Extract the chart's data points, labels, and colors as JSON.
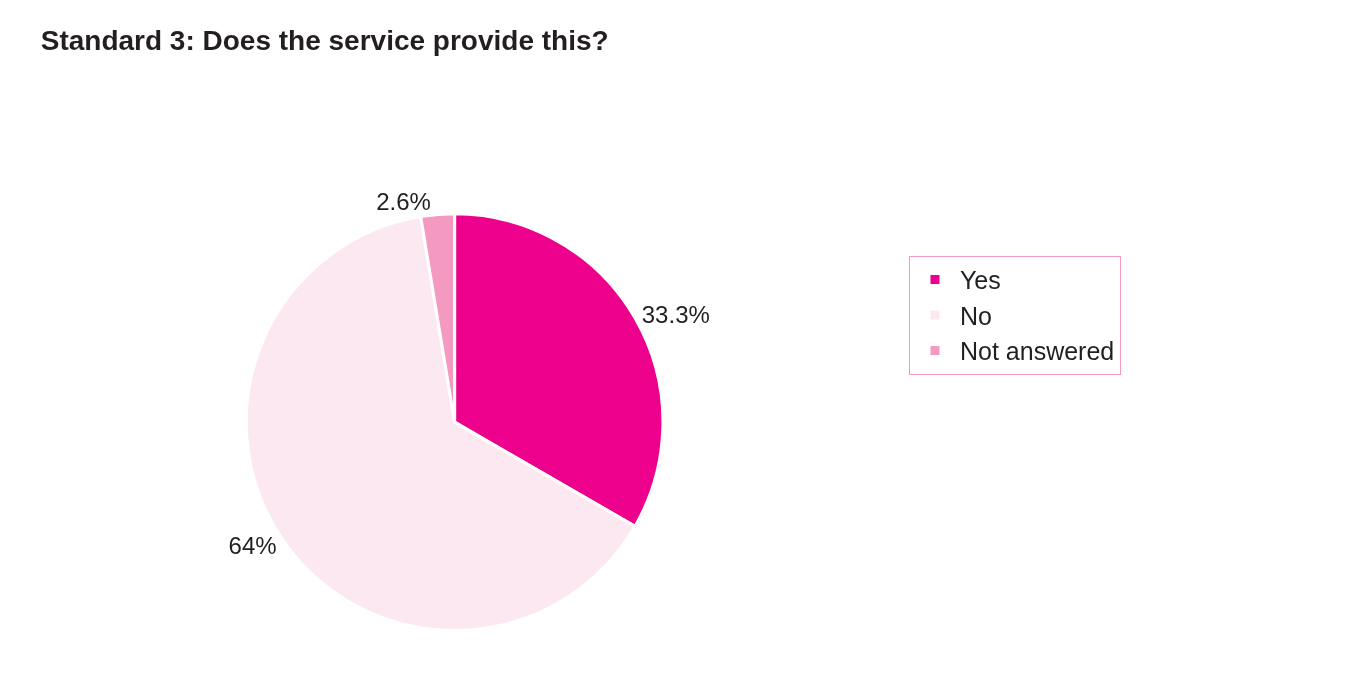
{
  "chart_data": {
    "type": "pie",
    "title": "Standard 3: Does the service provide this?",
    "categories": [
      "Yes",
      "No",
      "Not answered"
    ],
    "values": [
      33.3,
      64,
      2.6
    ],
    "value_labels": [
      "33.3%",
      "64%",
      "2.6%"
    ],
    "colors": [
      "#ec008c",
      "#fce8f1",
      "#f49ac1"
    ],
    "legend": "right"
  }
}
